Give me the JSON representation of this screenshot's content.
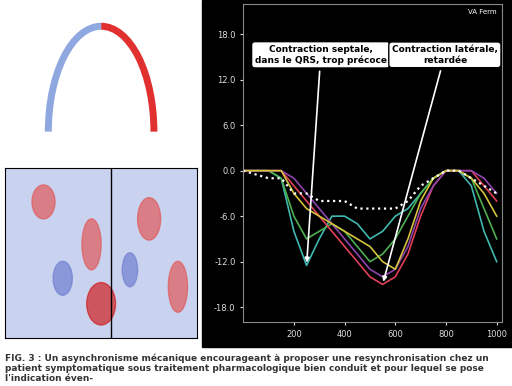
{
  "chart_data": {
    "type": "line",
    "corner_label": "VA Ferm",
    "caption": "FIG. 3 : Un asynchronisme mécanique encourageant à proposer une resynchronisation chez un patient symptomatique sous traitement pharmacologique bien conduit et pour lequel se pose l'indication éven-",
    "x": [
      0,
      100,
      150,
      200,
      250,
      300,
      350,
      400,
      450,
      500,
      550,
      600,
      650,
      700,
      750,
      800,
      850,
      900,
      950,
      1000
    ],
    "series": [
      {
        "color": "#3fb8b0",
        "line_style": "solid",
        "values": [
          0,
          0,
          -1,
          -8,
          -12.5,
          -9,
          -6,
          -6,
          -7,
          -9,
          -8,
          -6,
          -5,
          -3,
          -1,
          0,
          0,
          -2,
          -8,
          -12
        ]
      },
      {
        "color": "#4caf50",
        "line_style": "solid",
        "values": [
          0,
          0,
          -1,
          -6,
          -9,
          -8,
          -7,
          -8,
          -10,
          -12,
          -11,
          -9,
          -6,
          -3,
          -1,
          0,
          0,
          -1,
          -5,
          -9
        ]
      },
      {
        "color": "#e0405a",
        "line_style": "solid",
        "values": [
          0,
          0,
          0,
          -2,
          -4,
          -6,
          -8,
          -10,
          -12,
          -14,
          -15,
          -14,
          -11,
          -6,
          -2,
          0,
          0,
          0,
          -2,
          -4
        ]
      },
      {
        "color": "#8e44ad",
        "line_style": "solid",
        "values": [
          0,
          0,
          0,
          -1,
          -3,
          -5,
          -7,
          -9,
          -11,
          -13,
          -14,
          -13,
          -10,
          -5,
          -2,
          0,
          0,
          0,
          -1,
          -3
        ]
      },
      {
        "color": "#d4c23a",
        "line_style": "solid",
        "values": [
          0,
          0,
          0,
          -3,
          -5,
          -6,
          -7,
          -8,
          -9,
          -10,
          -12,
          -13,
          -9,
          -4,
          -1,
          0,
          0,
          -1,
          -3,
          -6
        ]
      },
      {
        "color": "#ffffff",
        "line_style": "dotted",
        "values": [
          0,
          -1,
          -1,
          -3,
          -3,
          -4,
          -4,
          -4,
          -5,
          -5,
          -5,
          -5,
          -4,
          -2,
          -1,
          0,
          0,
          -1,
          -2,
          -3
        ]
      }
    ],
    "annotations": [
      {
        "text": "Contraction septale,\ndans le QRS, trop précoce",
        "x": 250
      },
      {
        "text": "Contraction latérale,\nretardée",
        "x": 550
      }
    ],
    "xlim": [
      0,
      1020
    ],
    "ylim": [
      -20,
      22
    ],
    "xticks": [
      200,
      400,
      600,
      800,
      1000
    ],
    "yticks": [
      {
        "value": 18,
        "label": "18.0"
      },
      {
        "value": 12,
        "label": "12.0"
      },
      {
        "value": 6,
        "label": "6.0"
      },
      {
        "value": 0,
        "label": "0.0"
      },
      {
        "value": -6,
        "label": "-6.0"
      },
      {
        "value": -12,
        "label": "-12.0"
      },
      {
        "value": -18,
        "label": "-18.0"
      }
    ],
    "grid": false
  }
}
